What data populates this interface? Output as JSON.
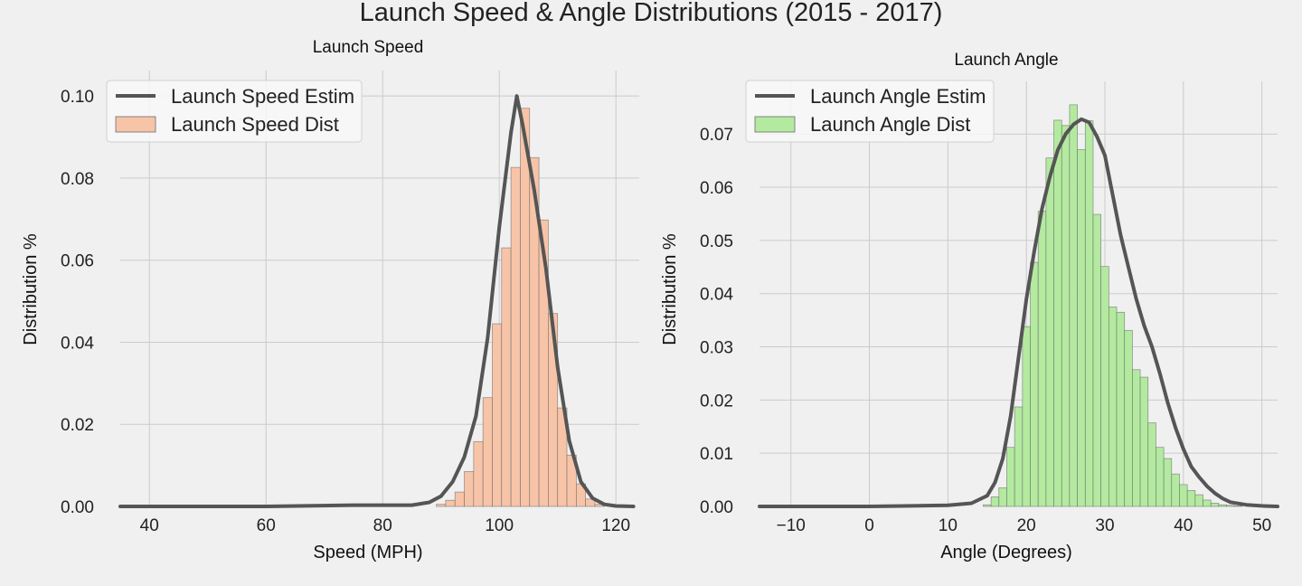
{
  "suptitle": "Launch Speed & Angle Distributions (2015 - 2017)",
  "chart_data": [
    {
      "type": "bar",
      "title": "Launch Speed",
      "xlabel": "Speed (MPH)",
      "ylabel": "Distribution %",
      "xlim": [
        35,
        124
      ],
      "ylim": [
        0,
        0.104
      ],
      "xticks": [
        40,
        60,
        80,
        100,
        120
      ],
      "yticks": [
        0.0,
        0.02,
        0.04,
        0.06,
        0.08,
        0.1
      ],
      "ytick_labels": [
        "0.00",
        "0.02",
        "0.04",
        "0.06",
        "0.08",
        "0.10"
      ],
      "grid": true,
      "legend_position": "top-left",
      "bar_color": "#f7c4a8",
      "line_color": "#555555",
      "bin_width": 1.6,
      "histogram": {
        "name": "Launch Speed Dist",
        "bin_left": [
          89.2,
          90.8,
          92.4,
          94.0,
          95.6,
          97.2,
          98.8,
          100.4,
          102.0,
          103.6,
          105.2,
          106.8,
          108.4,
          110.0,
          111.6,
          113.2,
          114.8,
          116.4
        ],
        "values": [
          0.0005,
          0.0015,
          0.0035,
          0.0085,
          0.0158,
          0.0265,
          0.0445,
          0.063,
          0.0826,
          0.097,
          0.085,
          0.0698,
          0.047,
          0.024,
          0.0125,
          0.0055,
          0.0018,
          0.0005
        ]
      },
      "kde": {
        "name": "Launch Speed Estim",
        "x": [
          35,
          60,
          75,
          85,
          88,
          90,
          92,
          94,
          96,
          98,
          100,
          102,
          103,
          104,
          106,
          108,
          110,
          112,
          114,
          116,
          118,
          120,
          123
        ],
        "y": [
          0,
          0,
          0.0003,
          0.0003,
          0.001,
          0.0025,
          0.006,
          0.012,
          0.022,
          0.041,
          0.068,
          0.091,
          0.1,
          0.093,
          0.077,
          0.058,
          0.034,
          0.016,
          0.006,
          0.002,
          0.0005,
          0.0001,
          0
        ]
      }
    },
    {
      "type": "bar",
      "title": "Launch Angle",
      "xlabel": "Angle (Degrees)",
      "ylabel": "Distribution %",
      "xlim": [
        -14,
        52
      ],
      "ylim": [
        0,
        0.0782
      ],
      "xticks": [
        -10,
        0,
        10,
        20,
        30,
        40,
        50
      ],
      "yticks": [
        0.0,
        0.01,
        0.02,
        0.03,
        0.04,
        0.05,
        0.06,
        0.07
      ],
      "ytick_labels": [
        "0.00",
        "0.01",
        "0.02",
        "0.03",
        "0.04",
        "0.05",
        "0.06",
        "0.07"
      ],
      "grid": true,
      "legend_position": "top-left",
      "bar_color": "#b3eaa0",
      "line_color": "#555555",
      "bin_width": 1.0,
      "histogram": {
        "name": "Launch Angle Dist",
        "bin_left": [
          14.5,
          15.5,
          16.5,
          17.5,
          18.5,
          19.5,
          20.5,
          21.5,
          22.5,
          23.5,
          24.5,
          25.5,
          26.5,
          27.5,
          28.5,
          29.5,
          30.5,
          31.5,
          32.5,
          33.5,
          34.5,
          35.5,
          36.5,
          37.5,
          38.5,
          39.5,
          40.5,
          41.5,
          42.5,
          43.5,
          44.5,
          45.5,
          46.5
        ],
        "values": [
          0.0003,
          0.0018,
          0.0035,
          0.0111,
          0.0187,
          0.0338,
          0.0459,
          0.0555,
          0.0655,
          0.0726,
          0.0716,
          0.0755,
          0.0671,
          0.0725,
          0.0549,
          0.0451,
          0.0375,
          0.0365,
          0.0331,
          0.0257,
          0.0243,
          0.0157,
          0.0111,
          0.009,
          0.0061,
          0.0041,
          0.003,
          0.0022,
          0.0012,
          0.0006,
          0.0003,
          0.0002,
          0.0001
        ]
      },
      "kde": {
        "name": "Launch Angle Estim",
        "x": [
          -14,
          0,
          10,
          13,
          15,
          16,
          17,
          18,
          19,
          20,
          21,
          22,
          23,
          24,
          25,
          26,
          27,
          28,
          29,
          30,
          31,
          32,
          33,
          34,
          35,
          36,
          37,
          38,
          39,
          40,
          41,
          42,
          43,
          44,
          45,
          46,
          48,
          50,
          52
        ],
        "y": [
          0,
          0,
          0.0002,
          0.0006,
          0.002,
          0.0045,
          0.009,
          0.017,
          0.028,
          0.039,
          0.048,
          0.056,
          0.062,
          0.067,
          0.07,
          0.0718,
          0.0728,
          0.0722,
          0.0695,
          0.066,
          0.0585,
          0.051,
          0.045,
          0.039,
          0.034,
          0.03,
          0.025,
          0.0195,
          0.0148,
          0.0108,
          0.0075,
          0.0055,
          0.0038,
          0.0025,
          0.0015,
          0.0008,
          0.0003,
          0.0001,
          0
        ]
      }
    }
  ]
}
